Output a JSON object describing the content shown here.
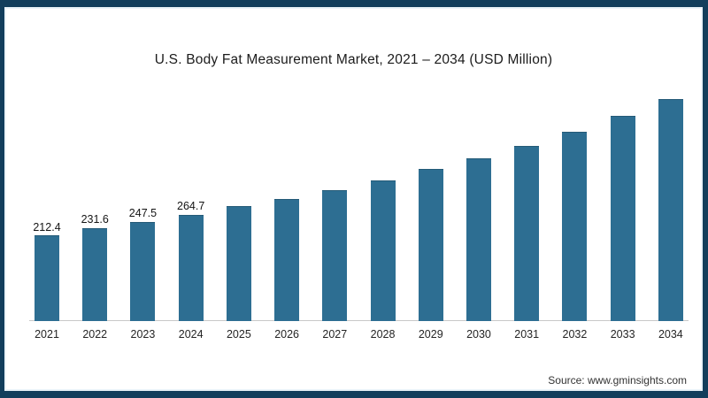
{
  "frame": {
    "border_color": "#123e5c"
  },
  "chart_data": {
    "type": "bar",
    "title": "U.S. Body Fat Measurement Market, 2021 – 2034 (USD Million)",
    "xlabel": "",
    "ylabel": "",
    "categories": [
      "2021",
      "2022",
      "2023",
      "2024",
      "2025",
      "2026",
      "2027",
      "2028",
      "2029",
      "2030",
      "2031",
      "2032",
      "2033",
      "2034"
    ],
    "values": [
      212.4,
      231.6,
      247.5,
      264.7,
      286,
      305,
      327,
      351,
      379,
      407,
      438,
      473,
      514,
      556
    ],
    "data_labels": [
      "212.4",
      "231.6",
      "247.5",
      "264.7",
      null,
      null,
      null,
      null,
      null,
      null,
      null,
      null,
      null,
      null
    ],
    "ylim": [
      0,
      580
    ],
    "grid": false,
    "legend": false,
    "bar_color": "#2d6e92",
    "axis_color": "#c9c9c9"
  },
  "footer": {
    "source_label": "Source: www.gminsights.com"
  }
}
